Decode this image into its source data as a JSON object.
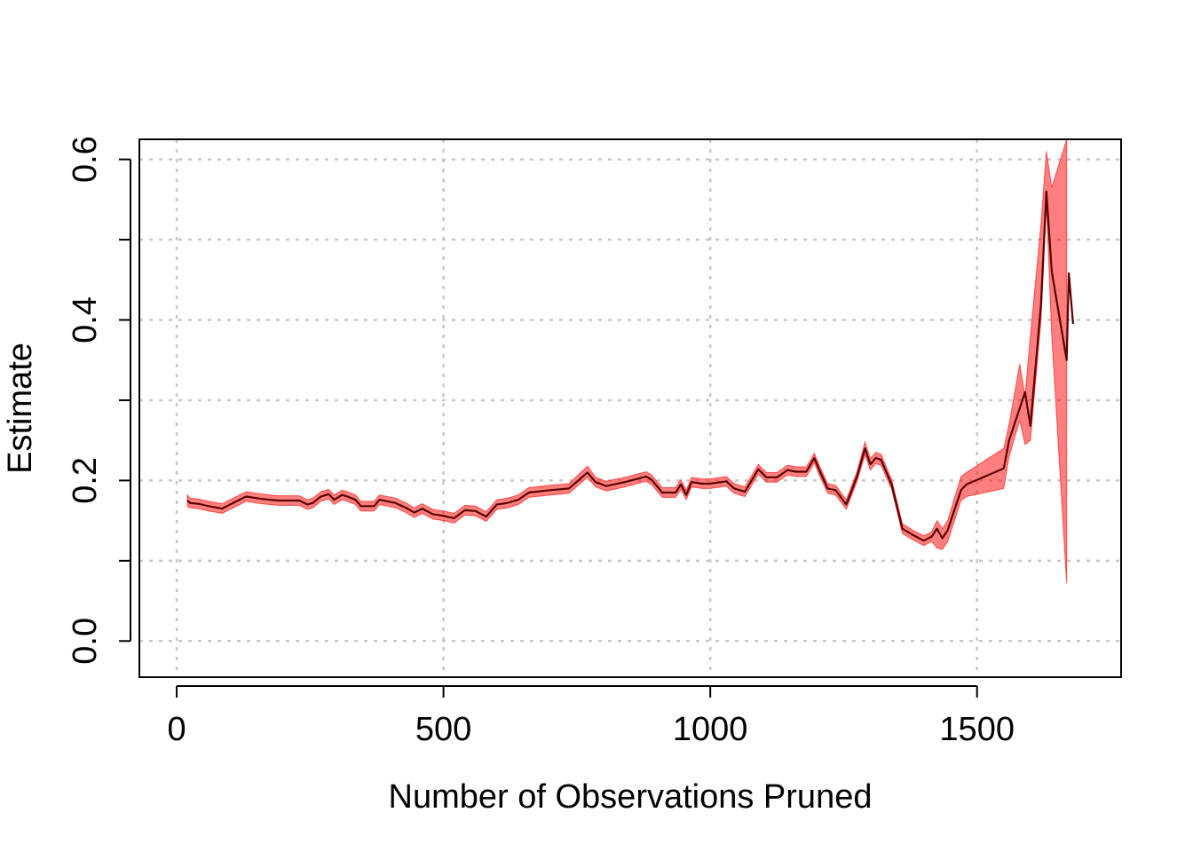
{
  "chart_data": {
    "type": "line",
    "title": "",
    "xlabel": "Number of Observations Pruned",
    "ylabel": "Estimate",
    "xlim": [
      -70,
      1770
    ],
    "ylim": [
      -0.045,
      0.625
    ],
    "x_ticks": [
      0,
      500,
      1000,
      1500
    ],
    "x_tick_labels": [
      "0",
      "500",
      "1000",
      "1500"
    ],
    "y_ticks": [
      0.0,
      0.1,
      0.2,
      0.3,
      0.4,
      0.5,
      0.6
    ],
    "y_tick_labels": [
      "0.0",
      "",
      "0.2",
      "",
      "0.4",
      "",
      "0.6"
    ],
    "grid": true,
    "colors": {
      "band": "#ff0000",
      "band_alpha": 0.5,
      "line": "#5a0000",
      "grid": "#c8c8c8"
    },
    "series": [
      {
        "x": [
          20,
          25,
          40,
          60,
          85,
          100,
          130,
          160,
          190,
          230,
          245,
          255,
          270,
          285,
          295,
          310,
          320,
          335,
          345,
          370,
          380,
          395,
          410,
          430,
          445,
          460,
          480,
          500,
          520,
          540,
          560,
          580,
          600,
          620,
          640,
          660,
          700,
          735,
          770,
          785,
          805,
          840,
          880,
          890,
          910,
          935,
          945,
          955,
          965,
          985,
          1000,
          1030,
          1045,
          1065,
          1090,
          1105,
          1125,
          1145,
          1160,
          1180,
          1195,
          1205,
          1220,
          1235,
          1255,
          1275,
          1290,
          1300,
          1310,
          1320,
          1340,
          1360,
          1380,
          1400,
          1415,
          1425,
          1435,
          1445,
          1470,
          1480,
          1550,
          1560,
          1580,
          1590,
          1600,
          1620,
          1630,
          1640,
          1668,
          1672,
          1680
        ],
        "y": [
          0.175,
          0.172,
          0.171,
          0.168,
          0.165,
          0.17,
          0.18,
          0.177,
          0.175,
          0.175,
          0.17,
          0.172,
          0.18,
          0.183,
          0.176,
          0.182,
          0.18,
          0.176,
          0.168,
          0.168,
          0.176,
          0.174,
          0.172,
          0.166,
          0.16,
          0.165,
          0.158,
          0.156,
          0.153,
          0.163,
          0.162,
          0.155,
          0.17,
          0.172,
          0.176,
          0.185,
          0.188,
          0.19,
          0.21,
          0.198,
          0.193,
          0.198,
          0.205,
          0.201,
          0.185,
          0.185,
          0.195,
          0.182,
          0.198,
          0.196,
          0.196,
          0.199,
          0.19,
          0.186,
          0.214,
          0.204,
          0.204,
          0.213,
          0.211,
          0.211,
          0.228,
          0.212,
          0.19,
          0.188,
          0.17,
          0.205,
          0.24,
          0.22,
          0.228,
          0.226,
          0.195,
          0.14,
          0.132,
          0.125,
          0.13,
          0.14,
          0.128,
          0.138,
          0.188,
          0.195,
          0.215,
          0.25,
          0.29,
          0.31,
          0.268,
          0.42,
          0.56,
          0.46,
          0.35,
          0.458,
          0.395
        ],
        "lower": [
          0.168,
          0.166,
          0.165,
          0.162,
          0.159,
          0.164,
          0.174,
          0.171,
          0.169,
          0.169,
          0.164,
          0.166,
          0.174,
          0.177,
          0.17,
          0.176,
          0.174,
          0.17,
          0.162,
          0.162,
          0.17,
          0.168,
          0.166,
          0.16,
          0.154,
          0.159,
          0.152,
          0.15,
          0.147,
          0.157,
          0.156,
          0.149,
          0.164,
          0.166,
          0.17,
          0.179,
          0.182,
          0.184,
          0.204,
          0.192,
          0.187,
          0.192,
          0.199,
          0.195,
          0.179,
          0.179,
          0.189,
          0.176,
          0.192,
          0.19,
          0.19,
          0.193,
          0.184,
          0.18,
          0.208,
          0.198,
          0.198,
          0.207,
          0.205,
          0.205,
          0.222,
          0.206,
          0.184,
          0.182,
          0.164,
          0.199,
          0.232,
          0.213,
          0.221,
          0.219,
          0.189,
          0.134,
          0.126,
          0.119,
          0.124,
          0.116,
          0.114,
          0.124,
          0.175,
          0.18,
          0.19,
          0.23,
          0.275,
          0.245,
          0.25,
          0.4,
          0.545,
          0.38,
          0.072,
          null,
          null
        ],
        "upper": [
          0.182,
          0.178,
          0.177,
          0.174,
          0.171,
          0.176,
          0.186,
          0.183,
          0.181,
          0.181,
          0.176,
          0.178,
          0.186,
          0.189,
          0.182,
          0.188,
          0.186,
          0.182,
          0.174,
          0.174,
          0.182,
          0.18,
          0.178,
          0.172,
          0.166,
          0.171,
          0.164,
          0.162,
          0.159,
          0.169,
          0.168,
          0.161,
          0.176,
          0.178,
          0.182,
          0.191,
          0.194,
          0.196,
          0.218,
          0.204,
          0.199,
          0.204,
          0.211,
          0.207,
          0.191,
          0.191,
          0.201,
          0.188,
          0.204,
          0.202,
          0.202,
          0.205,
          0.196,
          0.192,
          0.22,
          0.21,
          0.21,
          0.219,
          0.217,
          0.217,
          0.234,
          0.218,
          0.196,
          0.194,
          0.176,
          0.211,
          0.248,
          0.227,
          0.235,
          0.233,
          0.201,
          0.146,
          0.138,
          0.131,
          0.136,
          0.15,
          0.14,
          0.15,
          0.205,
          0.21,
          0.24,
          0.27,
          0.345,
          0.305,
          0.38,
          0.52,
          0.61,
          0.565,
          0.625,
          null,
          null
        ]
      }
    ]
  }
}
